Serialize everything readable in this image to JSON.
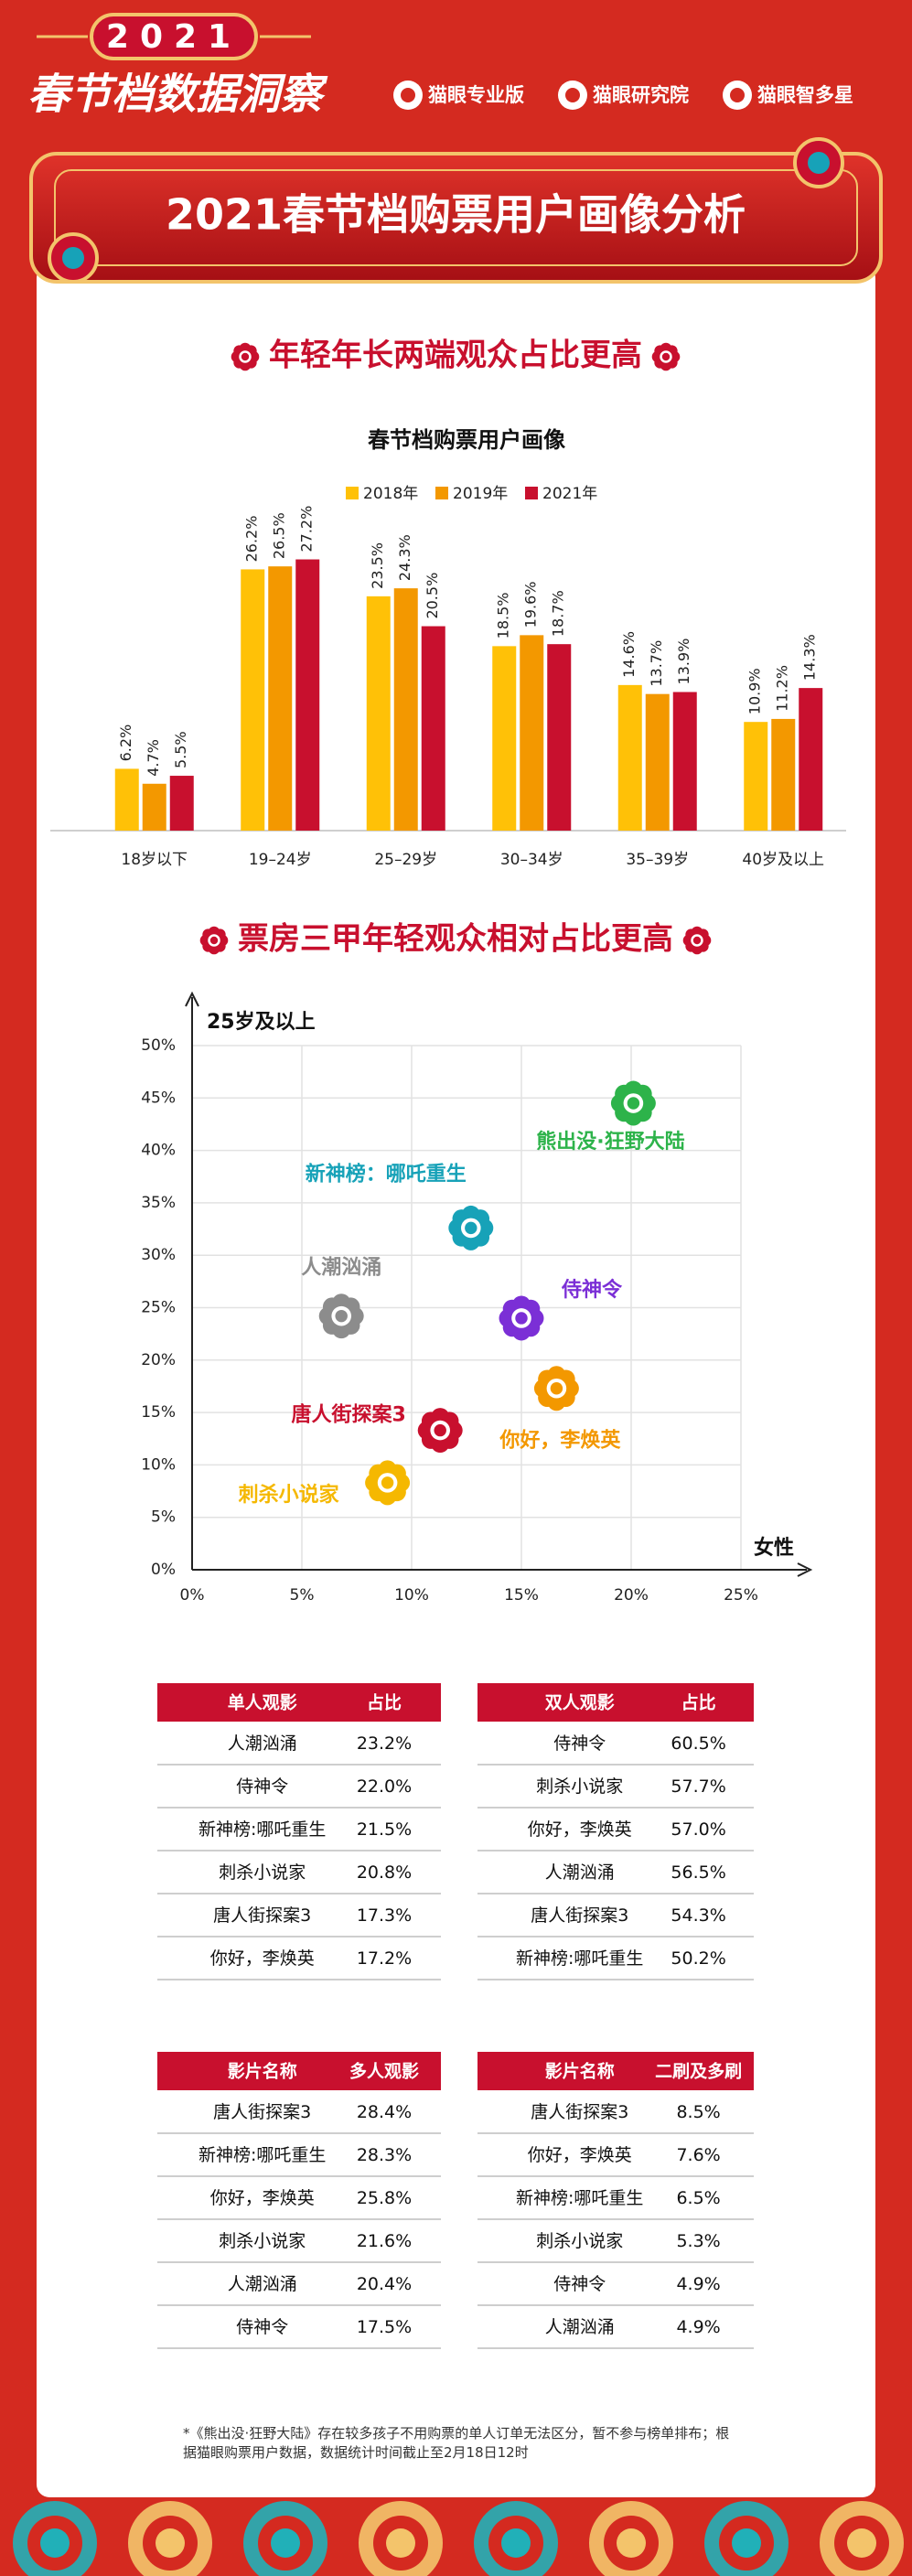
{
  "header": {
    "year": "2021",
    "title": "春节档数据洞察",
    "logos": [
      "猫眼专业版",
      "猫眼研究院",
      "猫眼智多星"
    ]
  },
  "main_title": "2021春节档购票用户画像分析",
  "sections": [
    {
      "heading": "年轻年长两端观众占比更高"
    },
    {
      "heading": "票房三甲年轻观众相对占比更高"
    }
  ],
  "chart_data": [
    {
      "type": "bar",
      "title": "春节档购票用户画像",
      "categories": [
        "18岁以下",
        "19–24岁",
        "25–29岁",
        "30–34岁",
        "35–39岁",
        "40岁及以上"
      ],
      "ylim": [
        0,
        30
      ],
      "grid": false,
      "legend": "top",
      "series": [
        {
          "name": "2018年",
          "color": "#ffc107",
          "values": [
            6.2,
            26.2,
            23.5,
            18.5,
            14.6,
            10.9
          ],
          "value_labels": [
            "6.2%",
            "26.2%",
            "23.5%",
            "18.5%",
            "14.6%",
            "10.9%"
          ]
        },
        {
          "name": "2019年",
          "color": "#f39800",
          "values": [
            4.7,
            26.5,
            24.3,
            19.6,
            13.7,
            11.2
          ],
          "value_labels": [
            "4.7%",
            "26.5%",
            "24.3%",
            "19.6%",
            "13.7%",
            "11.2%"
          ]
        },
        {
          "name": "2021年",
          "color": "#c8102e",
          "values": [
            5.5,
            27.2,
            20.5,
            18.7,
            13.9,
            14.3
          ],
          "value_labels": [
            "5.5%",
            "27.2%",
            "20.5%",
            "18.7%",
            "13.9%",
            "14.3%"
          ]
        }
      ]
    },
    {
      "type": "scatter",
      "x_label": "女性",
      "y_label": "25岁及以上",
      "xlim": [
        0,
        25
      ],
      "ylim": [
        0,
        50
      ],
      "grid": true,
      "xticks": [
        {
          "value": 0,
          "label": "0%"
        },
        {
          "value": 5,
          "label": "5%"
        },
        {
          "value": 10,
          "label": "10%"
        },
        {
          "value": 15,
          "label": "15%"
        },
        {
          "value": 20,
          "label": "20%"
        },
        {
          "value": 25,
          "label": "25%"
        }
      ],
      "yticks": [
        {
          "value": 0,
          "label": "0%"
        },
        {
          "value": 5,
          "label": "5%"
        },
        {
          "value": 10,
          "label": "10%"
        },
        {
          "value": 15,
          "label": "15%"
        },
        {
          "value": 20,
          "label": "20%"
        },
        {
          "value": 25,
          "label": "25%"
        },
        {
          "value": 30,
          "label": "30%"
        },
        {
          "value": 35,
          "label": "35%"
        },
        {
          "value": 40,
          "label": "40%"
        },
        {
          "value": 45,
          "label": "45%"
        },
        {
          "value": 50,
          "label": "50%"
        }
      ],
      "series": [
        {
          "name": "熊出没·狂野大陆",
          "color": "#2db34a",
          "x": [
            20.1
          ],
          "values": [
            44.5
          ]
        },
        {
          "name": "新神榜：哪吒重生",
          "color": "#17a2b8",
          "x": [
            12.7
          ],
          "values": [
            32.6
          ]
        },
        {
          "name": "人潮汹涌",
          "color": "#8c8c8c",
          "x": [
            6.8
          ],
          "values": [
            24.2
          ]
        },
        {
          "name": "侍神令",
          "color": "#7b2fd6",
          "x": [
            15.0
          ],
          "values": [
            24.0
          ]
        },
        {
          "name": "你好，李焕英",
          "color": "#f39800",
          "x": [
            16.6
          ],
          "values": [
            17.3
          ]
        },
        {
          "name": "唐人街探案3",
          "color": "#c8102e",
          "x": [
            11.3
          ],
          "values": [
            13.3
          ]
        },
        {
          "name": "刺杀小说家",
          "color": "#f5b800",
          "x": [
            8.9
          ],
          "values": [
            8.3
          ]
        }
      ]
    }
  ],
  "tables": [
    {
      "header": [
        "单人观影",
        "占比"
      ],
      "rows": [
        [
          "人潮汹涌",
          "23.2%"
        ],
        [
          "侍神令",
          "22.0%"
        ],
        [
          "新神榜:哪吒重生",
          "21.5%"
        ],
        [
          "刺杀小说家",
          "20.8%"
        ],
        [
          "唐人街探案3",
          "17.3%"
        ],
        [
          "你好，李焕英",
          "17.2%"
        ]
      ]
    },
    {
      "header": [
        "双人观影",
        "占比"
      ],
      "rows": [
        [
          "侍神令",
          "60.5%"
        ],
        [
          "刺杀小说家",
          "57.7%"
        ],
        [
          "你好，李焕英",
          "57.0%"
        ],
        [
          "人潮汹涌",
          "56.5%"
        ],
        [
          "唐人街探案3",
          "54.3%"
        ],
        [
          "新神榜:哪吒重生",
          "50.2%"
        ]
      ]
    },
    {
      "header": [
        "影片名称",
        "多人观影"
      ],
      "rows": [
        [
          "唐人街探案3",
          "28.4%"
        ],
        [
          "新神榜:哪吒重生",
          "28.3%"
        ],
        [
          "你好，李焕英",
          "25.8%"
        ],
        [
          "刺杀小说家",
          "21.6%"
        ],
        [
          "人潮汹涌",
          "20.4%"
        ],
        [
          "侍神令",
          "17.5%"
        ]
      ]
    },
    {
      "header": [
        "影片名称",
        "二刷及多刷"
      ],
      "rows": [
        [
          "唐人街探案3",
          "8.5%"
        ],
        [
          "你好，李焕英",
          "7.6%"
        ],
        [
          "新神榜:哪吒重生",
          "6.5%"
        ],
        [
          "刺杀小说家",
          "5.3%"
        ],
        [
          "侍神令",
          "4.9%"
        ],
        [
          "人潮汹涌",
          "4.9%"
        ]
      ]
    }
  ],
  "footnote": "*《熊出没·狂野大陆》存在较多孩子不用购票的单人订单无法区分，暂不参与榜单排布；根据猫眼购票用户数据，数据统计时间截止至2月18日12时"
}
